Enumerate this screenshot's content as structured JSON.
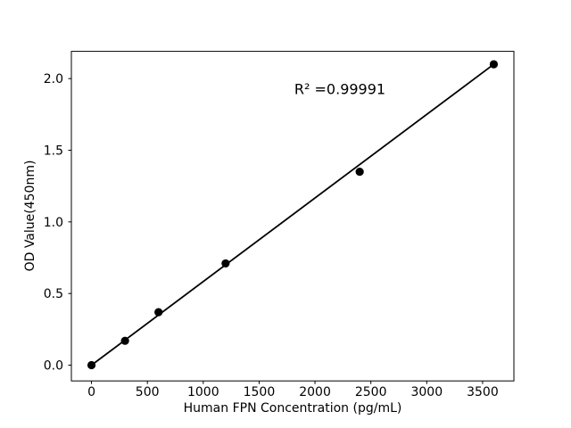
{
  "figure": {
    "background": "#ffffff"
  },
  "chart_data": {
    "type": "scatter",
    "title": "",
    "xlabel": "Human FPN Concentration (pg/mL)",
    "ylabel": "OD Value(450nm)",
    "x": [
      0,
      300,
      600,
      1200,
      2400,
      3600
    ],
    "y": [
      0.0,
      0.17,
      0.37,
      0.71,
      1.35,
      2.1
    ],
    "fit_line": {
      "x1": 0,
      "y1": 0.0,
      "x2": 3600,
      "y2": 2.1
    },
    "annotation": {
      "text": "R² =0.99991"
    },
    "x_ticks": [
      "0",
      "500",
      "1000",
      "1500",
      "2000",
      "2500",
      "3000",
      "3500"
    ],
    "y_ticks": [
      "0.0",
      "0.5",
      "1.0",
      "1.5",
      "2.0"
    ],
    "xlim": [
      -180,
      3780
    ],
    "ylim": [
      -0.11,
      2.19
    ],
    "grid": false,
    "legend": false,
    "marker_color": "#000000",
    "line_color": "#000000",
    "axis_color": "#000000"
  }
}
